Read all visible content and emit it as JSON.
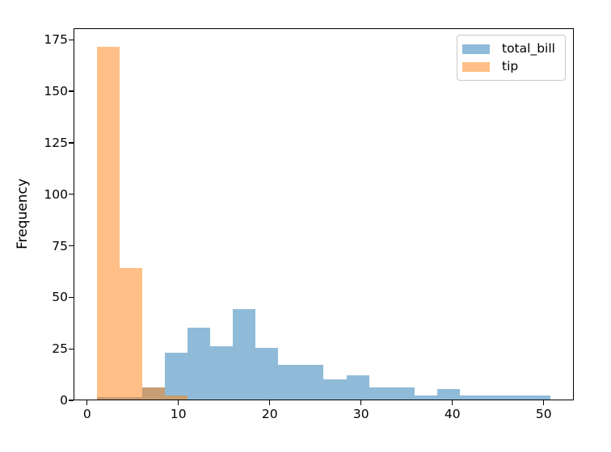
{
  "chart_data": {
    "type": "bar",
    "subtype": "histogram",
    "title": "",
    "xlabel": "",
    "ylabel": "Frequency",
    "bin_edges": [
      1.0,
      3.49,
      5.98,
      8.47,
      10.96,
      13.45,
      15.94,
      18.43,
      20.92,
      23.41,
      25.9,
      28.4,
      30.89,
      33.38,
      35.87,
      38.36,
      40.85,
      43.34,
      45.83,
      48.32,
      50.81
    ],
    "series": [
      {
        "name": "total_bill",
        "color": "#1f77b4",
        "alpha": 0.5,
        "counts": [
          1,
          1,
          6,
          23,
          35,
          26,
          44,
          25,
          17,
          17,
          10,
          12,
          6,
          6,
          2,
          5,
          2,
          2,
          2,
          2
        ]
      },
      {
        "name": "tip",
        "color": "#ff7f0e",
        "alpha": 0.5,
        "counts": [
          172,
          64,
          6,
          2,
          0,
          0,
          0,
          0,
          0,
          0,
          0,
          0,
          0,
          0,
          0,
          0,
          0,
          0,
          0,
          0
        ]
      }
    ],
    "xlim": [
      -1.49,
      53.3
    ],
    "ylim": [
      0,
      180.6
    ],
    "xticks": [
      0,
      10,
      20,
      30,
      40,
      50
    ],
    "yticks": [
      0,
      25,
      50,
      75,
      100,
      125,
      150,
      175
    ],
    "grid": false,
    "legend": {
      "position": "upper right",
      "entries": [
        {
          "label": "total_bill",
          "color": "#1f77b4"
        },
        {
          "label": "tip",
          "color": "#ff7f0e"
        }
      ]
    }
  }
}
